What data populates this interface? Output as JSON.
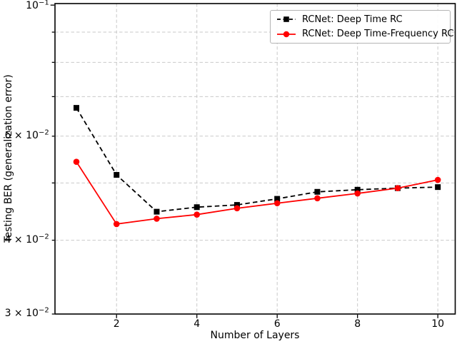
{
  "chart_data": {
    "type": "line",
    "title": "",
    "xlabel": "Number of Layers",
    "ylabel": "Testing BER (generalization error)",
    "yscale": "log",
    "xlim": [
      0.467,
      10.433
    ],
    "ylim": [
      0.03,
      0.1006
    ],
    "grid": {
      "on": true,
      "color": "#c9c9c9",
      "style": "dashed"
    },
    "x": [
      1,
      2,
      3,
      4,
      5,
      6,
      7,
      8,
      9,
      10
    ],
    "series": [
      {
        "name": "RCNet: Deep Time RC",
        "color": "#000000",
        "line": "dashed",
        "marker": "square",
        "values": [
          0.067,
          0.0516,
          0.0447,
          0.0455,
          0.0459,
          0.047,
          0.0483,
          0.0487,
          0.049,
          0.0492
        ]
      },
      {
        "name": "RCNet: Deep Time-Frequency RC",
        "color": "#ff0000",
        "line": "solid",
        "marker": "circle",
        "values": [
          0.0543,
          0.0426,
          0.0435,
          0.0442,
          0.0453,
          0.0462,
          0.0471,
          0.048,
          0.049,
          0.0506
        ]
      }
    ],
    "xticks": [
      {
        "value": 2,
        "label": "2"
      },
      {
        "value": 4,
        "label": "4"
      },
      {
        "value": 6,
        "label": "6"
      },
      {
        "value": 8,
        "label": "8"
      },
      {
        "value": 10,
        "label": "10"
      }
    ],
    "yticks": [
      {
        "value": 0.1,
        "mantissa": "",
        "base": "10",
        "exp": "−1",
        "major": true,
        "gridline": false
      },
      {
        "value": 0.09,
        "gridline": true
      },
      {
        "value": 0.08,
        "gridline": true
      },
      {
        "value": 0.07,
        "gridline": true
      },
      {
        "value": 0.06,
        "mantissa": "6",
        "base": "10",
        "exp": "−2",
        "major": false,
        "gridline": true
      },
      {
        "value": 0.05,
        "gridline": true
      },
      {
        "value": 0.04,
        "mantissa": "4",
        "base": "10",
        "exp": "−2",
        "major": false,
        "gridline": true
      },
      {
        "value": 0.03,
        "mantissa": "3",
        "base": "10",
        "exp": "−2",
        "major": false,
        "gridline": false
      }
    ],
    "legend_position": "upper right",
    "multiply_sign": " × "
  }
}
